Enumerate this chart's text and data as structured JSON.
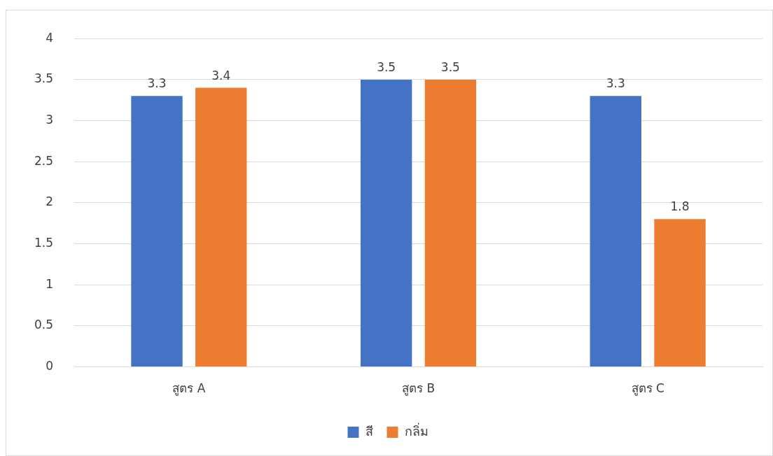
{
  "chart_data": {
    "type": "bar",
    "categories": [
      "สูตร A",
      "สูตร B",
      "สูตร C"
    ],
    "series": [
      {
        "name": "สี",
        "color": "#4472c4",
        "values": [
          3.3,
          3.5,
          3.3
        ]
      },
      {
        "name": "กลิ่ม",
        "color": "#ed7d31",
        "values": [
          3.4,
          3.5,
          1.8
        ]
      }
    ],
    "ylim": [
      0,
      4
    ],
    "yticks": [
      0,
      0.5,
      1,
      1.5,
      2,
      2.5,
      3,
      3.5,
      4
    ],
    "grid": "y",
    "legend": "bottom",
    "data_labels": true
  }
}
